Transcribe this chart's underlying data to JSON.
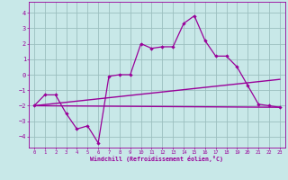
{
  "xlabel": "Windchill (Refroidissement éolien,°C)",
  "xlim": [
    -0.5,
    23.5
  ],
  "ylim": [
    -4.7,
    4.7
  ],
  "yticks": [
    -4,
    -3,
    -2,
    -1,
    0,
    1,
    2,
    3,
    4
  ],
  "xticks": [
    0,
    1,
    2,
    3,
    4,
    5,
    6,
    7,
    8,
    9,
    10,
    11,
    12,
    13,
    14,
    15,
    16,
    17,
    18,
    19,
    20,
    21,
    22,
    23
  ],
  "bg_color": "#c8e8e8",
  "grid_color": "#9bbfbf",
  "line_color": "#990099",
  "series1_x": [
    0,
    1,
    2,
    3,
    4,
    5,
    6,
    7,
    8,
    9,
    10,
    11,
    12,
    13,
    14,
    15,
    16,
    17,
    18,
    19,
    20,
    21,
    22,
    23
  ],
  "series1_y": [
    -2.0,
    -1.3,
    -1.3,
    -2.5,
    -3.5,
    -3.3,
    -4.4,
    -0.1,
    0.0,
    0.0,
    2.0,
    1.7,
    1.8,
    1.8,
    3.3,
    3.8,
    2.2,
    1.2,
    1.2,
    0.5,
    -0.7,
    -1.9,
    -2.0,
    -2.1
  ],
  "series2_x": [
    0,
    23
  ],
  "series2_y": [
    -2.0,
    -2.1
  ],
  "series3_x": [
    0,
    23
  ],
  "series3_y": [
    -2.0,
    -0.3
  ]
}
